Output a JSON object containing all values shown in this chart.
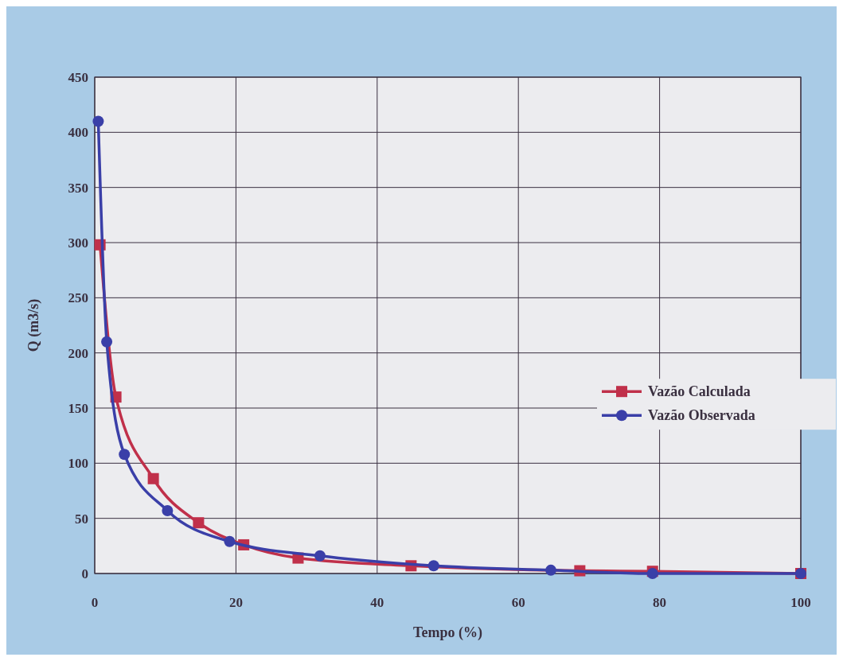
{
  "chart_data": {
    "type": "line",
    "xlabel": "Tempo (%)",
    "ylabel": "Q (m3/s)",
    "xlim": [
      0,
      100
    ],
    "xticks": [
      0,
      20,
      40,
      60,
      80,
      100
    ],
    "ylim": [
      0,
      450
    ],
    "yticks": [
      0,
      50,
      100,
      150,
      200,
      250,
      300,
      350,
      400,
      450
    ],
    "grid": true,
    "legend": "right",
    "series": [
      {
        "name": "Vazão Calculada",
        "color": "#c0304a",
        "marker": "square",
        "x": [
          0.75,
          3,
          8.3,
          14.7,
          21.1,
          28.8,
          44.8,
          68.7,
          79,
          100
        ],
        "values": [
          298,
          160,
          86,
          46,
          26,
          14,
          7,
          2.5,
          2,
          0
        ]
      },
      {
        "name": "Vazão Observada",
        "color": "#3a3fa8",
        "marker": "circle",
        "x": [
          0.5,
          1.7,
          4.2,
          10.3,
          19.1,
          31.9,
          48,
          64.6,
          79,
          100
        ],
        "values": [
          410,
          210,
          108,
          57,
          29,
          16,
          7,
          3,
          0,
          0
        ]
      }
    ]
  }
}
